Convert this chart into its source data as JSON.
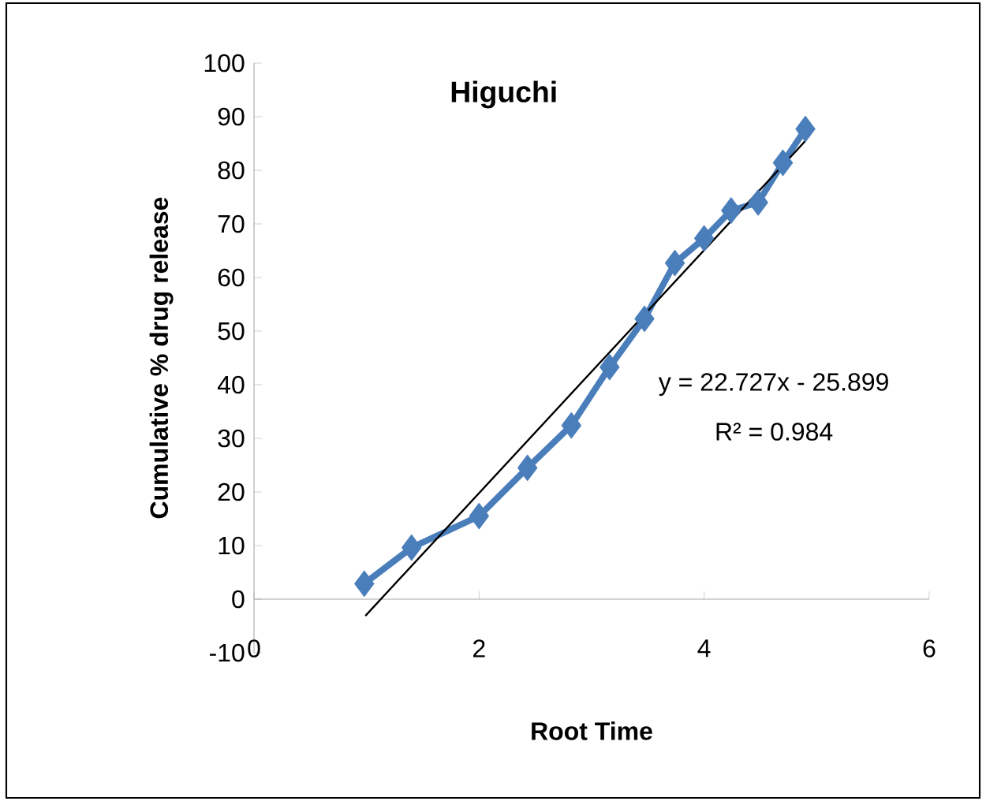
{
  "chart_data": {
    "type": "line",
    "title": "Higuchi",
    "xlabel": "Root Time",
    "ylabel": "Cumulative % drug release",
    "annotations": [
      "y = 22.727x - 25.899",
      "R² = 0.984"
    ],
    "xlim": [
      0,
      6
    ],
    "xticks": [
      0,
      2,
      4,
      6
    ],
    "ylim": [
      -10,
      100
    ],
    "yticks": [
      -10,
      0,
      10,
      20,
      30,
      40,
      50,
      60,
      70,
      80,
      90,
      100
    ],
    "grid": false,
    "series": [
      {
        "color": "#4a7ebb",
        "marker": "diamond",
        "x": [
          0.98,
          1.4,
          2.0,
          2.43,
          2.82,
          3.16,
          3.47,
          3.74,
          4.0,
          4.24,
          4.48,
          4.7,
          4.9
        ],
        "values": [
          2.9,
          9.6,
          15.5,
          24.5,
          32.4,
          43.3,
          52.3,
          62.7,
          67.3,
          72.5,
          74.0,
          81.4,
          87.7
        ]
      },
      {
        "type": "line",
        "color": "#000000",
        "marker": "none",
        "x": [
          0.99,
          4.9
        ],
        "values": [
          -3.1,
          85.5
        ]
      }
    ]
  }
}
